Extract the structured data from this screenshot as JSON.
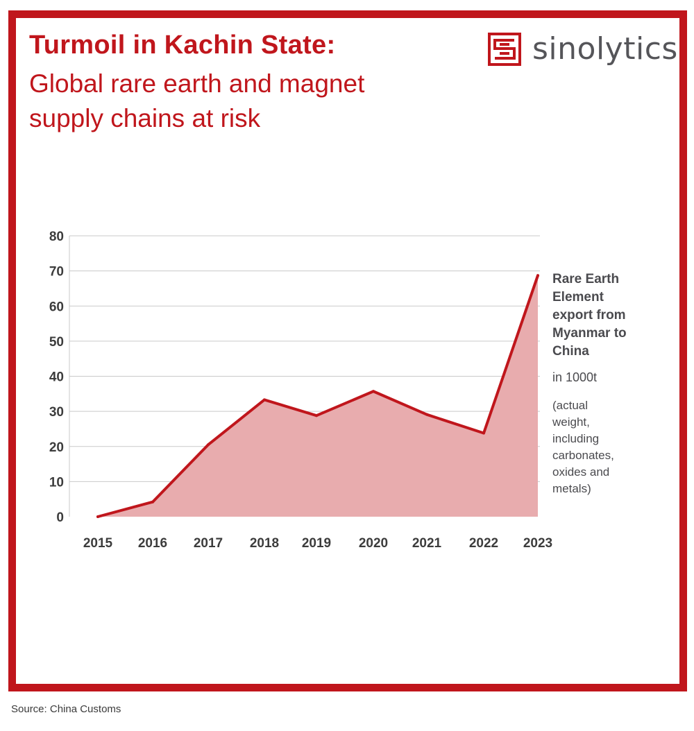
{
  "header": {
    "title_bold": "Turmoil in Kachin State:",
    "title_light": "Global rare earth and magnet supply chains at risk"
  },
  "logo": {
    "text": "sinolytics",
    "icon": "sinolytics-logo-icon"
  },
  "colors": {
    "accent": "#c0161c",
    "area_fill": "#e8acae",
    "axis_text": "#3c3c3c",
    "grid": "#c9c9c9"
  },
  "legend": {
    "title": "Rare Earth Element export from Myanmar to China",
    "unit": "in 1000t",
    "note": "(actual\nweight,\nincluding\ncarbonates,\noxides and\n metals)"
  },
  "source": "Source: China Customs",
  "chart_data": {
    "type": "area",
    "x": [
      "2015",
      "2016",
      "2017",
      "2018",
      "2019",
      "2020",
      "2021",
      "2022",
      "2023"
    ],
    "series": [
      {
        "values": [
          0,
          4.2,
          20.5,
          33.3,
          28.8,
          35.7,
          29.1,
          23.8,
          68.7
        ]
      }
    ],
    "ylim": [
      0,
      80
    ],
    "yticks": [
      0,
      10,
      20,
      30,
      40,
      50,
      60,
      70,
      80
    ],
    "grid": true,
    "xlabel": "",
    "ylabel": ""
  }
}
